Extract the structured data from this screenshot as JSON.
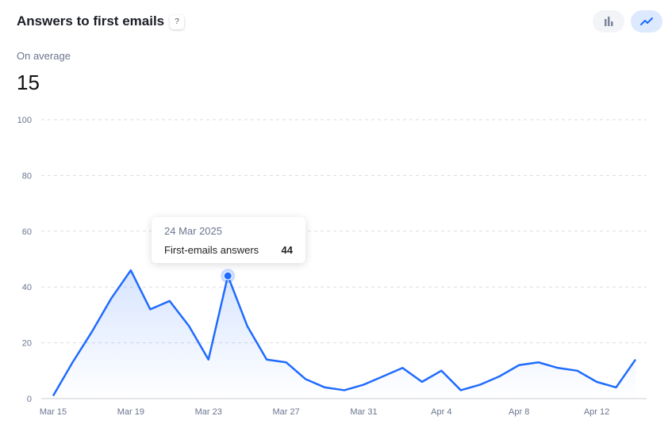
{
  "header": {
    "title": "Answers to first emails",
    "help": "?",
    "bar_view": "bar-chart-icon",
    "line_view": "line-chart-icon"
  },
  "summary": {
    "label": "On average",
    "value": "15"
  },
  "tooltip": {
    "date": "24 Mar 2025",
    "label": "First-emails answers",
    "value": "44"
  },
  "colors": {
    "line": "#1f6bff",
    "grid": "#d9dde5"
  },
  "chart_data": {
    "type": "line",
    "title": "Answers to first emails",
    "ylim": [
      0,
      100
    ],
    "yticks": [
      0,
      20,
      40,
      60,
      80,
      100
    ],
    "x": [
      "Mar 15",
      "Mar 16",
      "Mar 17",
      "Mar 18",
      "Mar 19",
      "Mar 20",
      "Mar 21",
      "Mar 22",
      "Mar 23",
      "Mar 24",
      "Mar 25",
      "Mar 26",
      "Mar 27",
      "Mar 28",
      "Mar 29",
      "Mar 30",
      "Mar 31",
      "Apr 1",
      "Apr 2",
      "Apr 3",
      "Apr 4",
      "Apr 5",
      "Apr 6",
      "Apr 7",
      "Apr 8",
      "Apr 9",
      "Apr 10",
      "Apr 11",
      "Apr 12",
      "Apr 13",
      "Apr 14"
    ],
    "xticks": [
      "Mar 15",
      "Mar 19",
      "Mar 23",
      "Mar 27",
      "Mar 31",
      "Apr 4",
      "Apr 8",
      "Apr 12"
    ],
    "series": [
      {
        "name": "First-emails answers",
        "values": [
          1,
          13,
          24,
          36,
          46,
          32,
          35,
          26,
          14,
          44,
          26,
          14,
          13,
          7,
          4,
          3,
          5,
          8,
          11,
          6,
          10,
          3,
          5,
          8,
          12,
          13,
          11,
          10,
          6,
          4,
          14
        ]
      }
    ],
    "highlight_index": 9,
    "grid": true
  }
}
